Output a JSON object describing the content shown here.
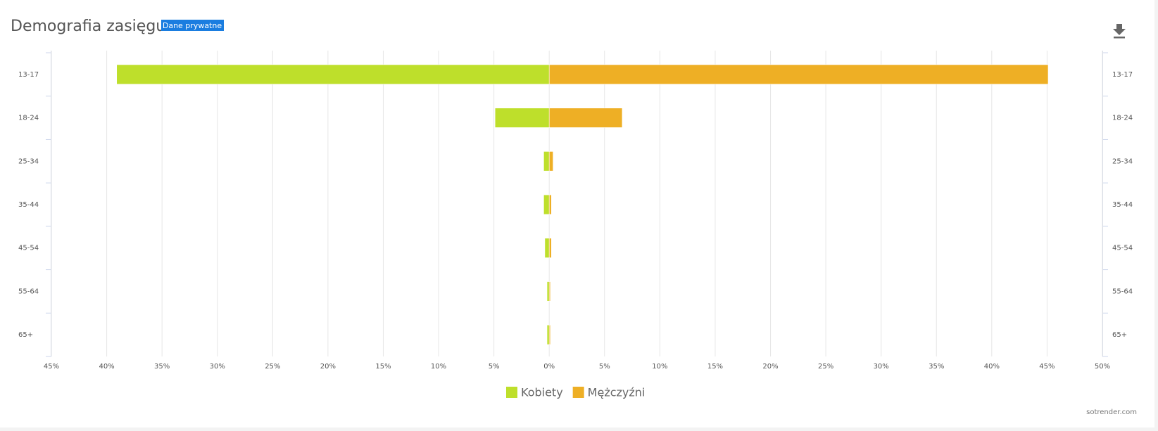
{
  "title": "Demografia zasięgu",
  "badge": "Dane prywatne",
  "credit": "sotrender.com",
  "chart_data": {
    "type": "bar",
    "orientation": "horizontal",
    "stacked": "diverging",
    "categories": [
      "13-17",
      "18-24",
      "25-34",
      "35-44",
      "45-54",
      "55-64",
      "65+"
    ],
    "series": [
      {
        "name": "Kobiety",
        "color": "#bedf2b",
        "values": [
          -39.1,
          -4.9,
          -0.5,
          -0.5,
          -0.4,
          -0.2,
          -0.2
        ]
      },
      {
        "name": "Mężczyźni",
        "color": "#eeaf25",
        "values": [
          45.1,
          6.6,
          0.35,
          0.2,
          0.2,
          0.1,
          0.1
        ]
      }
    ],
    "xlim": [
      -45,
      50
    ],
    "xticks": [
      {
        "value": -45,
        "label": "45%"
      },
      {
        "value": -40,
        "label": "40%"
      },
      {
        "value": -35,
        "label": "35%"
      },
      {
        "value": -30,
        "label": "30%"
      },
      {
        "value": -25,
        "label": "25%"
      },
      {
        "value": -20,
        "label": "20%"
      },
      {
        "value": -15,
        "label": "15%"
      },
      {
        "value": -10,
        "label": "10%"
      },
      {
        "value": -5,
        "label": "5%"
      },
      {
        "value": 0,
        "label": "0%"
      },
      {
        "value": 5,
        "label": "5%"
      },
      {
        "value": 10,
        "label": "10%"
      },
      {
        "value": 15,
        "label": "15%"
      },
      {
        "value": 20,
        "label": "20%"
      },
      {
        "value": 25,
        "label": "25%"
      },
      {
        "value": 30,
        "label": "30%"
      },
      {
        "value": 35,
        "label": "35%"
      },
      {
        "value": 40,
        "label": "40%"
      },
      {
        "value": 45,
        "label": "45%"
      },
      {
        "value": 50,
        "label": "50%"
      }
    ],
    "grid": true,
    "legend": "bottom"
  }
}
